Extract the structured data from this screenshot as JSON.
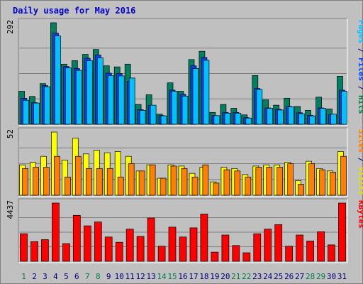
{
  "chart_data": {
    "type": "bar",
    "title": "Daily usage for May 2016",
    "categories": [
      "1",
      "2",
      "3",
      "4",
      "5",
      "6",
      "7",
      "8",
      "9",
      "10",
      "11",
      "12",
      "13",
      "14",
      "15",
      "16",
      "17",
      "18",
      "19",
      "20",
      "21",
      "22",
      "23",
      "24",
      "25",
      "26",
      "27",
      "28",
      "29",
      "30",
      "31"
    ],
    "weekend_days": [
      "1",
      "7",
      "8",
      "14",
      "15",
      "21",
      "22",
      "28",
      "29"
    ],
    "panels": [
      {
        "id": "hits-files-pages",
        "scale_label": "292",
        "ylim": [
          0,
          292
        ],
        "right_label": [
          {
            "text": "Pages",
            "color": "#00c0ff"
          },
          {
            "text": " / ",
            "color": "#000080"
          },
          {
            "text": "Files",
            "color": "#0040ff"
          },
          {
            "text": " / ",
            "color": "#000080"
          },
          {
            "text": "Hits",
            "color": "#008040"
          }
        ],
        "series": [
          {
            "name": "Hits",
            "color": "#008060",
            "values": [
              95,
              80,
              117,
              292,
              173,
              183,
              201,
              215,
              168,
              165,
              173,
              57,
              85,
              29,
              119,
              95,
              186,
              210,
              34,
              57,
              46,
              27,
              140,
              70,
              55,
              75,
              51,
              40,
              78,
              44,
              138
            ]
          },
          {
            "name": "Files",
            "color": "#0040ff",
            "values": [
              75,
              62,
              111,
              262,
              166,
              160,
              190,
              199,
              147,
              146,
              124,
              42,
              54,
              25,
              98,
              86,
              168,
              192,
              25,
              34,
              34,
              19,
              103,
              47,
              43,
              51,
              33,
              26,
              47,
              28,
              98
            ]
          },
          {
            "name": "Pages",
            "color": "#00c0ff",
            "values": [
              69,
              61,
              108,
              254,
              162,
              155,
              183,
              191,
              140,
              139,
              133,
              40,
              55,
              24,
              95,
              81,
              160,
              184,
              25,
              32,
              32,
              18,
              100,
              46,
              41,
              50,
              30,
              24,
              46,
              29,
              95
            ]
          }
        ]
      },
      {
        "id": "visits-sites",
        "scale_label": "52",
        "ylim": [
          0,
          52
        ],
        "right_label": [
          {
            "text": "Sites",
            "color": "#ff8000"
          },
          {
            "text": " / ",
            "color": "#000080"
          },
          {
            "text": "Visits",
            "color": "#e0e000"
          }
        ],
        "series": [
          {
            "name": "Visits",
            "color": "#ffff00",
            "values": [
              25,
              27,
              32,
              52,
              29,
              47,
              34,
              37,
              35,
              36,
              32,
              20,
              25,
              14,
              25,
              24,
              18,
              23,
              11,
              23,
              22,
              17,
              24,
              25,
              25,
              27,
              12,
              28,
              22,
              20,
              36
            ]
          },
          {
            "name": "Sites",
            "color": "#ff8000",
            "values": [
              22,
              23,
              23,
              32,
              15,
              32,
              22,
              22,
              22,
              15,
              26,
              20,
              25,
              14,
              24,
              22,
              15,
              25,
              10,
              21,
              20,
              15,
              23,
              23,
              23,
              26,
              9,
              26,
              21,
              19,
              32
            ]
          }
        ]
      },
      {
        "id": "kbytes",
        "scale_label": "4437",
        "ylim": [
          0,
          4437
        ],
        "right_label": [
          {
            "text": "KBytes",
            "color": "#ff0000"
          }
        ],
        "series": [
          {
            "name": "KBytes",
            "color": "#ff0000",
            "values": [
              2100,
              1500,
              1650,
              4437,
              1350,
              3500,
              2700,
              3000,
              1850,
              1450,
              2450,
              1900,
              3300,
              1150,
              2600,
              1850,
              2550,
              3600,
              700,
              2000,
              1200,
              650,
              2100,
              2450,
              2800,
              1150,
              2000,
              1550,
              2250,
              1250,
              4437
            ]
          }
        ]
      }
    ],
    "colors": {
      "background": "#c0c0c0",
      "frame": "#e8e8e8",
      "title": "#0000cc",
      "weekday_label": "#000080",
      "weekend_label": "#00804b",
      "grid": "#808080"
    }
  }
}
